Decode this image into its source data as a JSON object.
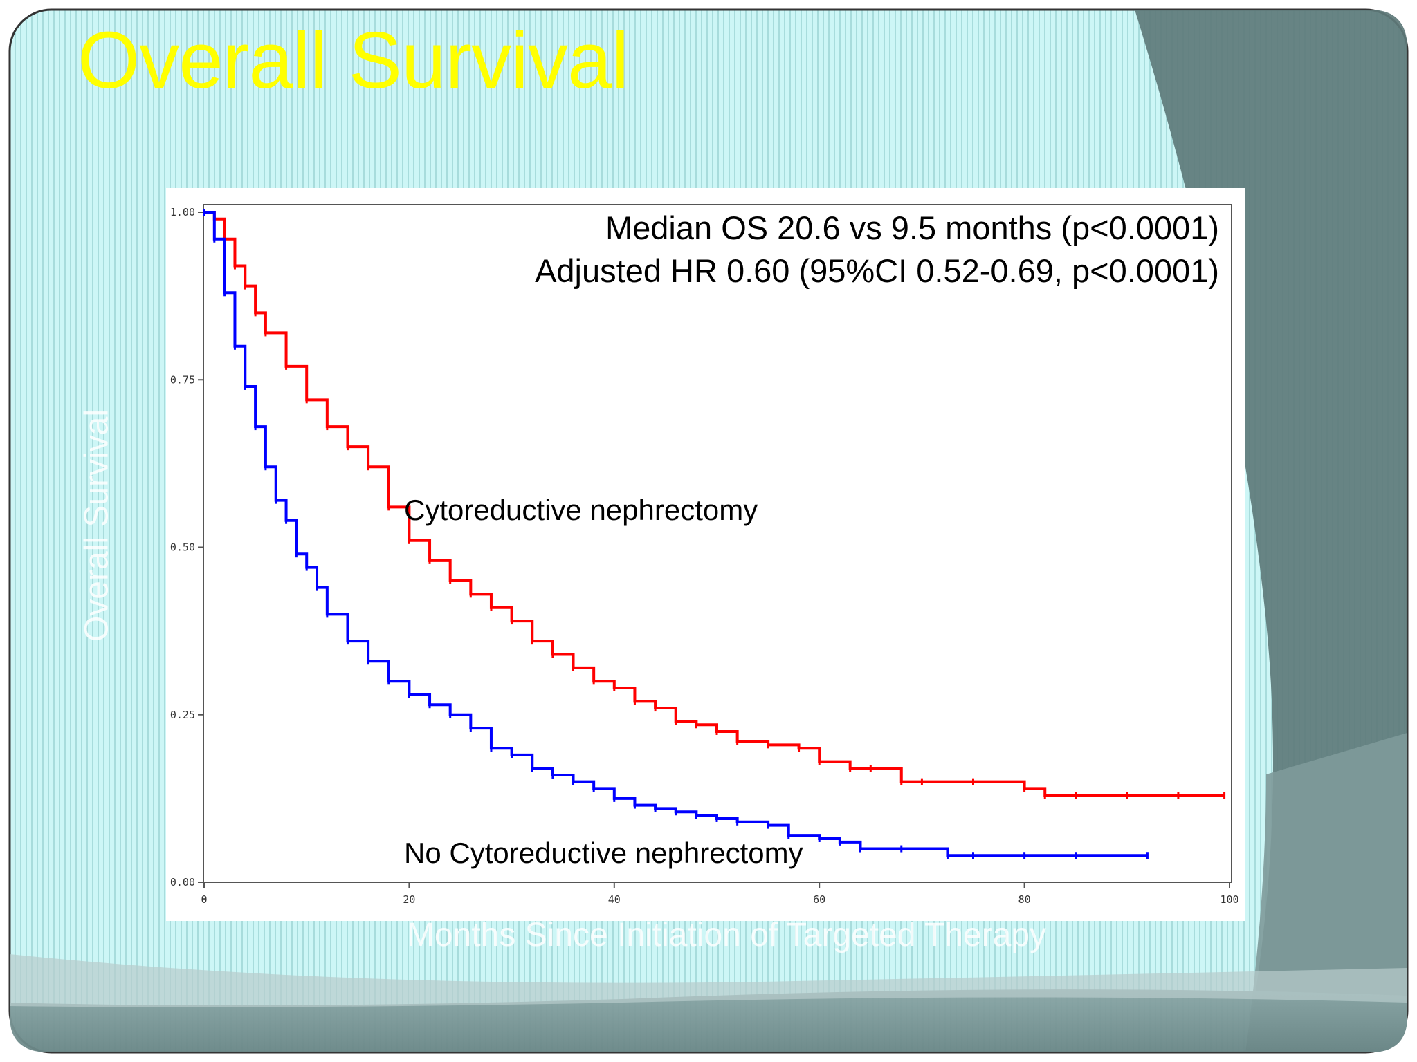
{
  "slide": {
    "title": "Overall Survival",
    "colors": {
      "background": "#cdf6f6",
      "stripe": "#a6dada",
      "title": "#ffff00",
      "shade": "#5d7777"
    }
  },
  "chart_data": {
    "type": "line",
    "title": "",
    "xlabel": "Months Since Initiation of Targeted Therapy",
    "ylabel": "Overall Survival",
    "xlim": [
      0,
      100
    ],
    "ylim": [
      0,
      1
    ],
    "xticks": [
      "0",
      "20",
      "40",
      "60",
      "80",
      "100"
    ],
    "yticks": [
      "0.00",
      "0.25",
      "0.50",
      "0.75",
      "1.00"
    ],
    "annotations": [
      "Median OS 20.6 vs 9.5 months (p<0.0001)",
      "Adjusted HR 0.60 (95%CI 0.52-0.69, p<0.0001)"
    ],
    "series": [
      {
        "name": "Cytoreductive nephrectomy",
        "color": "#ff0000",
        "x": [
          0,
          1,
          2,
          3,
          4,
          5,
          6,
          8,
          10,
          12,
          14,
          16,
          18,
          20,
          22,
          24,
          26,
          28,
          30,
          32,
          34,
          36,
          38,
          40,
          42,
          44,
          46,
          48,
          50,
          52,
          55,
          58,
          60,
          63,
          65,
          68,
          70,
          75,
          80,
          82,
          85,
          90,
          95,
          99.5
        ],
        "y": [
          1.0,
          0.99,
          0.96,
          0.92,
          0.89,
          0.85,
          0.82,
          0.77,
          0.72,
          0.68,
          0.65,
          0.62,
          0.56,
          0.51,
          0.48,
          0.45,
          0.43,
          0.41,
          0.39,
          0.36,
          0.34,
          0.32,
          0.3,
          0.29,
          0.27,
          0.26,
          0.24,
          0.235,
          0.225,
          0.21,
          0.205,
          0.2,
          0.18,
          0.17,
          0.17,
          0.15,
          0.15,
          0.15,
          0.14,
          0.13,
          0.13,
          0.13,
          0.13,
          0.13
        ]
      },
      {
        "name": "No Cytoreductive nephrectomy",
        "color": "#0000ff",
        "x": [
          0,
          1,
          2,
          3,
          4,
          5,
          6,
          7,
          8,
          9,
          10,
          11,
          12,
          14,
          16,
          18,
          20,
          22,
          24,
          26,
          28,
          30,
          32,
          34,
          36,
          38,
          40,
          42,
          44,
          46,
          48,
          50,
          52,
          55,
          57,
          60,
          62,
          64,
          68,
          72.5,
          75,
          80,
          85,
          92
        ],
        "y": [
          1.0,
          0.96,
          0.88,
          0.8,
          0.74,
          0.68,
          0.62,
          0.57,
          0.54,
          0.49,
          0.47,
          0.44,
          0.4,
          0.36,
          0.33,
          0.3,
          0.28,
          0.265,
          0.25,
          0.23,
          0.2,
          0.19,
          0.17,
          0.16,
          0.15,
          0.14,
          0.125,
          0.115,
          0.11,
          0.105,
          0.1,
          0.095,
          0.09,
          0.085,
          0.07,
          0.065,
          0.06,
          0.05,
          0.05,
          0.04,
          0.04,
          0.04,
          0.04,
          0.04
        ]
      }
    ],
    "censor_markers": true,
    "grid": false,
    "legend": "inline labels"
  }
}
